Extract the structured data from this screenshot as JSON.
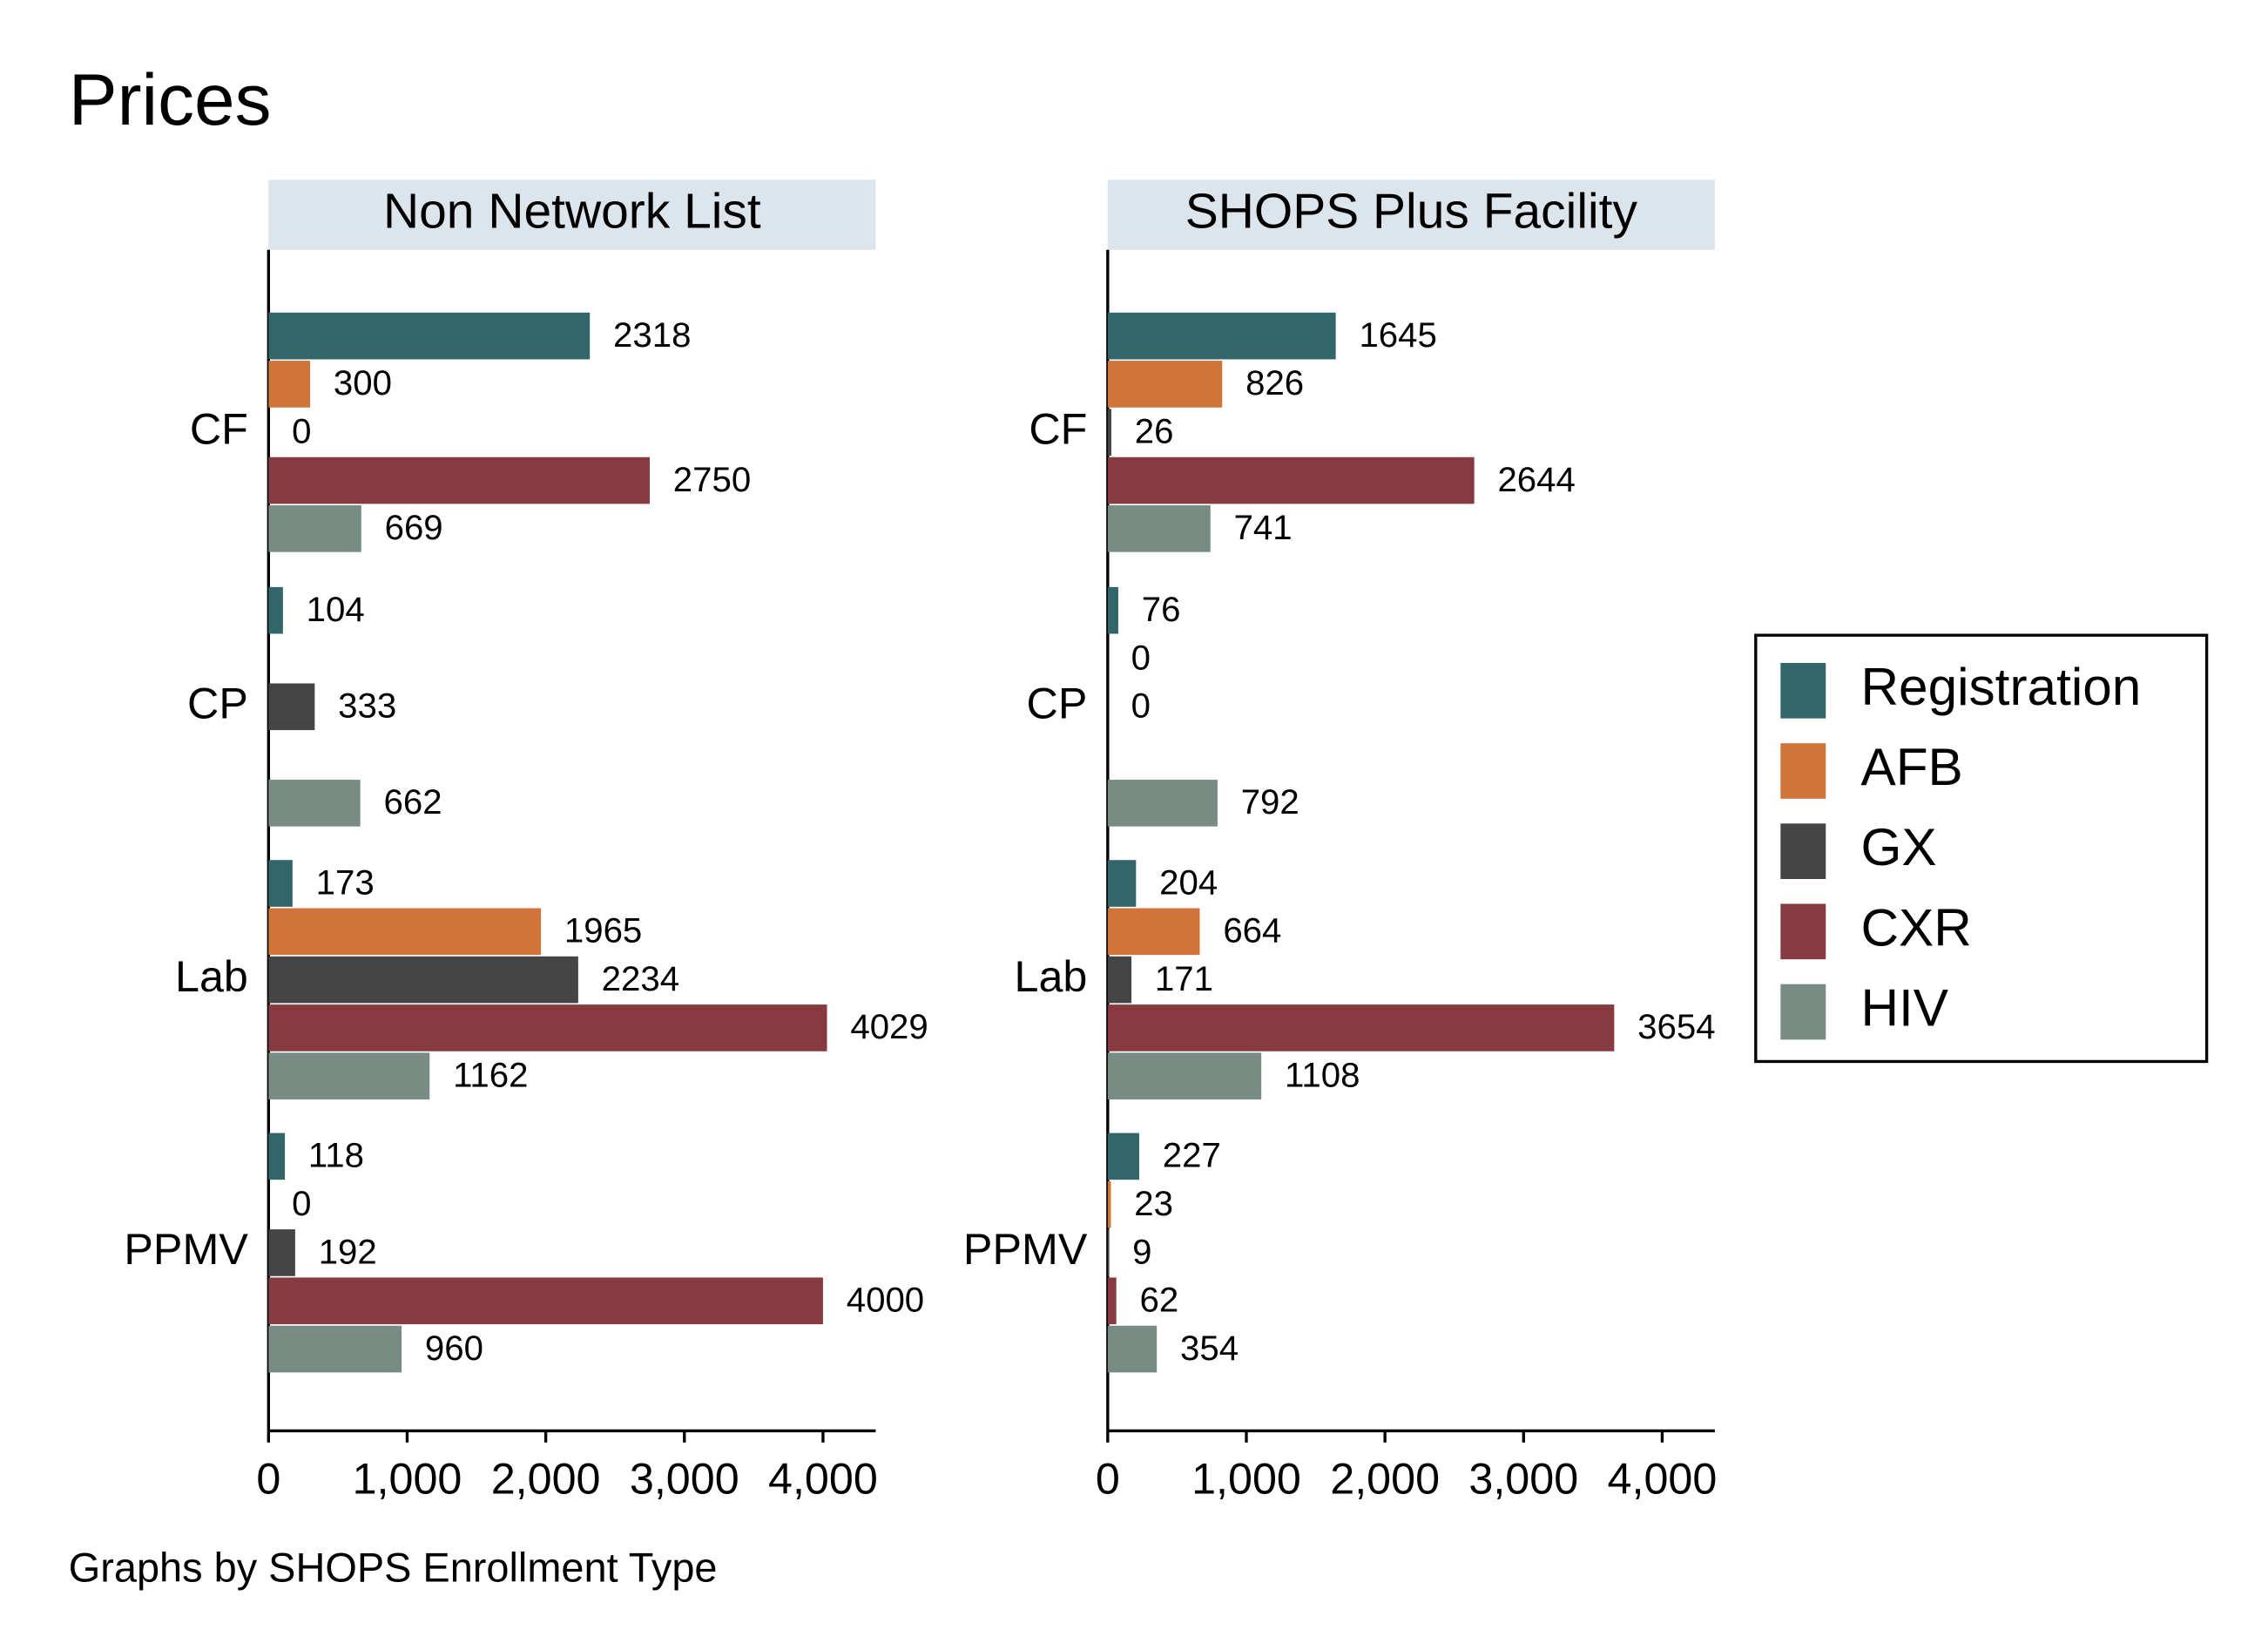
{
  "title": "Prices",
  "note": "Graphs by SHOPS Enrollment Type",
  "chart_data": [
    {
      "type": "bar",
      "orientation": "horizontal",
      "title": "Non Network List",
      "categories": [
        "CF",
        "CP",
        "Lab",
        "PPMV"
      ],
      "series": [
        {
          "name": "Registration",
          "color": "#33666b",
          "values": [
            2318,
            104,
            173,
            118
          ]
        },
        {
          "name": "AFB",
          "color": "#d0743a",
          "values": [
            300,
            null,
            1965,
            0
          ]
        },
        {
          "name": "GX",
          "color": "#454545",
          "values": [
            0,
            333,
            2234,
            192
          ]
        },
        {
          "name": "CXR",
          "color": "#873a3f",
          "values": [
            2750,
            null,
            4029,
            4000
          ]
        },
        {
          "name": "HIV",
          "color": "#778c83",
          "values": [
            669,
            662,
            1162,
            960
          ]
        }
      ],
      "xlim": [
        0,
        4380
      ],
      "xticks": [
        0,
        {
          "value": 1000,
          "label": "1,000"
        },
        {
          "value": 2000,
          "label": "2,000"
        },
        {
          "value": 3000,
          "label": "3,000"
        },
        {
          "value": 4000,
          "label": "4,000"
        }
      ]
    },
    {
      "type": "bar",
      "orientation": "horizontal",
      "title": "SHOPS Plus Facility",
      "categories": [
        "CF",
        "CP",
        "Lab",
        "PPMV"
      ],
      "series": [
        {
          "name": "Registration",
          "color": "#33666b",
          "values": [
            1645,
            76,
            204,
            227
          ]
        },
        {
          "name": "AFB",
          "color": "#d0743a",
          "values": [
            826,
            0,
            664,
            23
          ]
        },
        {
          "name": "GX",
          "color": "#454545",
          "values": [
            26,
            0,
            171,
            9
          ]
        },
        {
          "name": "CXR",
          "color": "#873a3f",
          "values": [
            2644,
            null,
            3654,
            62
          ]
        },
        {
          "name": "HIV",
          "color": "#778c83",
          "values": [
            741,
            792,
            1108,
            354
          ]
        }
      ],
      "xlim": [
        0,
        4380
      ],
      "xticks": [
        0,
        {
          "value": 1000,
          "label": "1,000"
        },
        {
          "value": 2000,
          "label": "2,000"
        },
        {
          "value": 3000,
          "label": "3,000"
        },
        {
          "value": 4000,
          "label": "4,000"
        }
      ]
    }
  ]
}
